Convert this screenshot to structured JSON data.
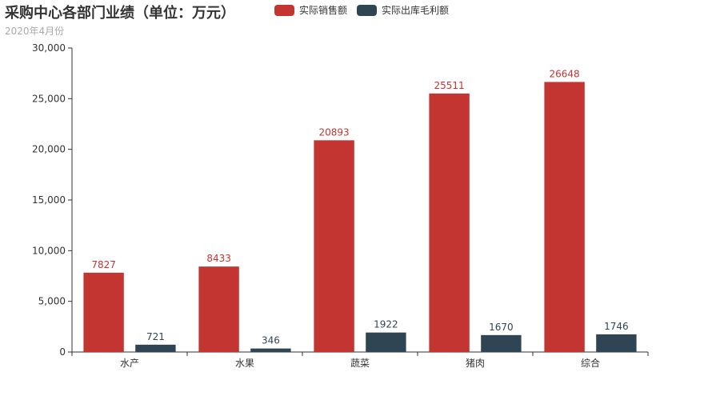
{
  "title": "采购中心各部门业绩（单位：万元）",
  "subtitle": "2020年4月份",
  "colors": {
    "sales": "#c23531",
    "profit": "#2f4554",
    "axis": "#333333"
  },
  "chart_data": {
    "type": "bar",
    "categories": [
      "水产",
      "水果",
      "蔬菜",
      "猪肉",
      "综合"
    ],
    "series": [
      {
        "name": "实际销售额",
        "values": [
          7827,
          8433,
          20893,
          25511,
          26648
        ]
      },
      {
        "name": "实际出库毛利额",
        "values": [
          721,
          346,
          1922,
          1670,
          1746
        ]
      }
    ],
    "ylim": [
      0,
      30000
    ],
    "yticks": [
      "0",
      "5,000",
      "10,000",
      "15,000",
      "20,000",
      "25,000",
      "30,000"
    ],
    "legend": "top",
    "grid": false
  }
}
